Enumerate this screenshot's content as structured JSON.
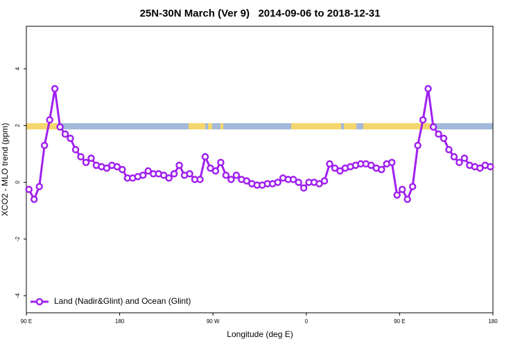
{
  "chart_data": {
    "type": "line",
    "title": "25N-30N March (Ver 9)   2014-09-06 to 2018-12-31",
    "x_label": "Longitude (deg E)",
    "y_label": "XCO2 - MLO trend (ppm)",
    "x": [
      92.5,
      97.5,
      102.5,
      107.5,
      112.5,
      117.5,
      122.5,
      127.5,
      132.5,
      137.5,
      142.5,
      147.5,
      152.5,
      157.5,
      162.5,
      167.5,
      172.5,
      177.5,
      182.5,
      187.5,
      192.5,
      197.5,
      202.5,
      207.5,
      212.5,
      217.5,
      222.5,
      227.5,
      232.5,
      237.5,
      242.5,
      247.5,
      252.5,
      257.5,
      262.5,
      267.5,
      272.5,
      277.5,
      282.5,
      287.5,
      292.5,
      297.5,
      302.5,
      307.5,
      312.5,
      317.5,
      322.5,
      327.5,
      332.5,
      337.5,
      342.5,
      347.5,
      352.5,
      357.5,
      362.5,
      367.5,
      372.5,
      377.5,
      382.5,
      387.5,
      392.5,
      397.5,
      402.5,
      407.5,
      412.5,
      417.5,
      422.5,
      427.5,
      432.5,
      437.5,
      442.5,
      447.5,
      452.5,
      457.5,
      462.5,
      467.5,
      472.5,
      477.5,
      482.5,
      487.5,
      492.5,
      497.5,
      502.5,
      507.5,
      512.5,
      517.5,
      522.5,
      527.5,
      532.5,
      537.5
    ],
    "series": [
      {
        "name": "Land (Nadir&Glint) and Ocean (Glint)",
        "color": "#a020f0",
        "values": [
          -0.25,
          -0.6,
          -0.15,
          1.3,
          2.2,
          3.3,
          1.95,
          1.7,
          1.55,
          1.15,
          0.9,
          0.7,
          0.85,
          0.6,
          0.55,
          0.5,
          0.6,
          0.55,
          0.45,
          0.15,
          0.15,
          0.2,
          0.25,
          0.4,
          0.3,
          0.3,
          0.25,
          0.15,
          0.3,
          0.6,
          0.25,
          0.3,
          0.1,
          0.1,
          0.9,
          0.5,
          0.4,
          0.7,
          0.25,
          0.1,
          0.25,
          0.1,
          0.05,
          -0.05,
          -0.1,
          -0.1,
          -0.05,
          -0.05,
          0.0,
          0.15,
          0.1,
          0.1,
          0.0,
          -0.2,
          0.0,
          0.0,
          -0.05,
          0.05,
          0.65,
          0.5,
          0.4,
          0.5,
          0.55,
          0.6,
          0.65,
          0.65,
          0.6,
          0.5,
          0.45,
          0.65,
          0.7,
          -0.45,
          -0.25,
          -0.6,
          -0.15,
          1.3,
          2.2,
          3.3,
          1.95,
          1.7,
          1.55,
          1.15,
          0.9,
          0.7,
          0.85,
          0.6,
          0.55,
          0.5,
          0.6,
          0.55
        ]
      }
    ],
    "xlim": [
      90,
      540
    ],
    "xticks": [
      {
        "value": 90,
        "label": "90 E"
      },
      180,
      {
        "value": 270,
        "label": "90 W"
      },
      {
        "value": 360,
        "label": "0"
      },
      {
        "value": 450,
        "label": "90 E"
      },
      {
        "value": 540,
        "label": "180"
      }
    ],
    "ylim": [
      -4.6,
      5.5
    ],
    "yticks": [
      -4,
      -2,
      0,
      2,
      4
    ],
    "legend": "bottomleft"
  }
}
